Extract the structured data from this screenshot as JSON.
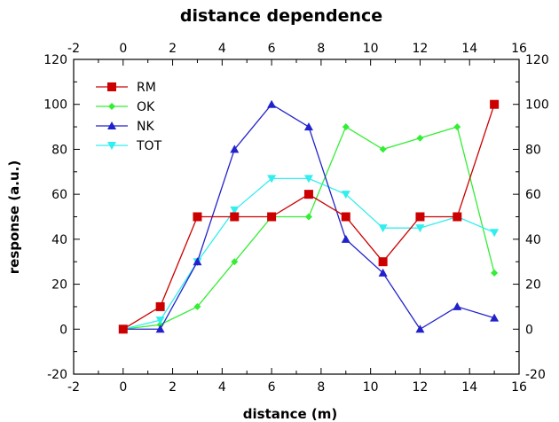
{
  "chart_data": {
    "type": "line",
    "title": "distance dependence",
    "xlabel": "distance (m)",
    "ylabel": "response (a.u.)",
    "xlim": [
      -2,
      16
    ],
    "ylim": [
      -20,
      120
    ],
    "x_ticks": [
      -2,
      0,
      2,
      4,
      6,
      8,
      10,
      12,
      14,
      16
    ],
    "y_ticks": [
      -20,
      0,
      20,
      40,
      60,
      80,
      100,
      120
    ],
    "x_ticks_mirrored_top": true,
    "y_ticks_mirrored_right": true,
    "legend_position": "top-left",
    "grid": false,
    "x": [
      0,
      1.5,
      3,
      4.5,
      6,
      7.5,
      9,
      10.5,
      12,
      13.5,
      15
    ],
    "series": [
      {
        "name": "RM",
        "color": "#cc0000",
        "marker": "square",
        "values": [
          0,
          10,
          50,
          50,
          50,
          60,
          50,
          30,
          50,
          50,
          100
        ]
      },
      {
        "name": "OK",
        "color": "#33ee33",
        "marker": "diamond",
        "values": [
          0,
          2,
          10,
          30,
          50,
          50,
          90,
          80,
          85,
          90,
          25
        ]
      },
      {
        "name": "NK",
        "color": "#2222cc",
        "marker": "triangle-up",
        "values": [
          0,
          0,
          30,
          80,
          100,
          90,
          40,
          25,
          0,
          10,
          5
        ]
      },
      {
        "name": "TOT",
        "color": "#33eeee",
        "marker": "triangle-down",
        "values": [
          0,
          4,
          30,
          53,
          67,
          67,
          60,
          45,
          45,
          50,
          43
        ]
      }
    ]
  }
}
